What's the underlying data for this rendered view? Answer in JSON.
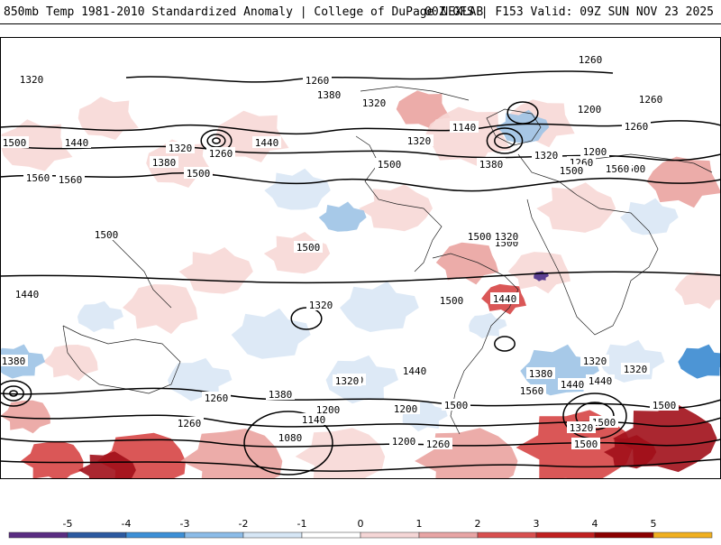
{
  "header": {
    "title": "850mb Temp 1981-2010 Standardized Anomaly | College of DuPage NEXLAB",
    "run_info": "00Z GFS | F153 Valid: 09Z SUN NOV 23 2025"
  },
  "map": {
    "contour_labels": [
      "1320",
      "1260",
      "1380",
      "1320",
      "1500",
      "1440",
      "1320",
      "1380",
      "1260",
      "1440",
      "1560",
      "1500",
      "1560",
      "1500",
      "1500",
      "1500",
      "1500",
      "1500",
      "1440",
      "1500",
      "1320",
      "1380",
      "1320",
      "1440",
      "1260",
      "1260",
      "1380",
      "1200",
      "1140",
      "1080",
      "1200",
      "1260",
      "1200",
      "1320",
      "1260",
      "1320",
      "1320",
      "1380",
      "1440",
      "1500",
      "1320",
      "1500",
      "1500",
      "1440",
      "1560",
      "1500",
      "1260",
      "1200",
      "1140",
      "1320",
      "1200",
      "1260",
      "1500",
      "1320",
      "1500",
      "1380",
      "1320",
      "1260",
      "1500",
      "1320",
      "1440",
      "1500",
      "1560"
    ]
  },
  "colorbar": {
    "ticks": [
      "-5",
      "-4",
      "-3",
      "-2",
      "-1",
      "0",
      "1",
      "2",
      "3",
      "4",
      "5"
    ],
    "colors": [
      "#5a2d82",
      "#2c5aa0",
      "#3d8fd6",
      "#8cbce8",
      "#d6e6f5",
      "#ffffff",
      "#f5d6d6",
      "#e8a5a5",
      "#d85050",
      "#c02020",
      "#8b0000",
      "#f0b020"
    ]
  },
  "palette": {
    "warm_light": "#f7d8d6",
    "warm_mid": "#eaa3a0",
    "warm_strong": "#d64545",
    "warm_dark": "#a10f1a",
    "cool_light": "#d9e7f5",
    "cool_mid": "#9dc3e6",
    "cool_strong": "#3a8ad0",
    "cool_dark": "#4a2e8a"
  }
}
